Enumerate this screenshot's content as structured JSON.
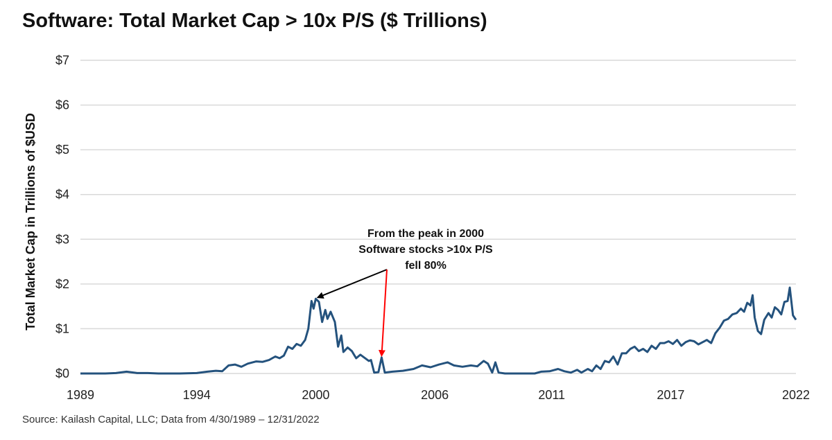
{
  "chart_data": {
    "type": "line",
    "title": "Software: Total Market Cap > 10x P/S ($ Trillions)",
    "xlabel": "",
    "ylabel": "Total Market Cap in Trillions of $USD",
    "source": "Source: Kailash Capital, LLC; Data from 4/30/1989 – 12/31/2022",
    "xlim": [
      1989.33,
      2022.99
    ],
    "ylim": [
      0,
      7
    ],
    "grid": true,
    "legend": "none",
    "x_ticks": [
      {
        "value": 1989.33,
        "label": "1989"
      },
      {
        "value": 1994.8,
        "label": "1994"
      },
      {
        "value": 2000.4,
        "label": "2000"
      },
      {
        "value": 2006.0,
        "label": "2006"
      },
      {
        "value": 2011.5,
        "label": "2011"
      },
      {
        "value": 2017.1,
        "label": "2017"
      },
      {
        "value": 2022.99,
        "label": "2022"
      }
    ],
    "y_ticks": [
      {
        "value": 0,
        "label": "$0"
      },
      {
        "value": 1,
        "label": "$1"
      },
      {
        "value": 2,
        "label": "$2"
      },
      {
        "value": 3,
        "label": "$3"
      },
      {
        "value": 4,
        "label": "$4"
      },
      {
        "value": 5,
        "label": "$5"
      },
      {
        "value": 6,
        "label": "$6"
      },
      {
        "value": 7,
        "label": "$7"
      }
    ],
    "series": [
      {
        "name": "Total Market Cap > 10x P/S",
        "color": "#24527d",
        "points": [
          [
            1989.33,
            0.0
          ],
          [
            1990.5,
            0.0
          ],
          [
            1991.0,
            0.01
          ],
          [
            1991.5,
            0.04
          ],
          [
            1992.0,
            0.01
          ],
          [
            1992.5,
            0.01
          ],
          [
            1993.0,
            0.0
          ],
          [
            1994.0,
            0.0
          ],
          [
            1994.8,
            0.01
          ],
          [
            1995.3,
            0.04
          ],
          [
            1995.7,
            0.06
          ],
          [
            1996.0,
            0.05
          ],
          [
            1996.3,
            0.18
          ],
          [
            1996.6,
            0.2
          ],
          [
            1996.9,
            0.15
          ],
          [
            1997.2,
            0.22
          ],
          [
            1997.6,
            0.27
          ],
          [
            1997.9,
            0.26
          ],
          [
            1998.2,
            0.3
          ],
          [
            1998.5,
            0.38
          ],
          [
            1998.7,
            0.34
          ],
          [
            1998.9,
            0.4
          ],
          [
            1999.1,
            0.6
          ],
          [
            1999.3,
            0.55
          ],
          [
            1999.5,
            0.66
          ],
          [
            1999.7,
            0.62
          ],
          [
            1999.9,
            0.75
          ],
          [
            2000.05,
            1.0
          ],
          [
            2000.2,
            1.62
          ],
          [
            2000.3,
            1.45
          ],
          [
            2000.4,
            1.67
          ],
          [
            2000.55,
            1.6
          ],
          [
            2000.7,
            1.15
          ],
          [
            2000.85,
            1.42
          ],
          [
            2000.95,
            1.22
          ],
          [
            2001.1,
            1.38
          ],
          [
            2001.3,
            1.15
          ],
          [
            2001.45,
            0.6
          ],
          [
            2001.6,
            0.85
          ],
          [
            2001.7,
            0.48
          ],
          [
            2001.9,
            0.58
          ],
          [
            2002.1,
            0.5
          ],
          [
            2002.3,
            0.34
          ],
          [
            2002.5,
            0.42
          ],
          [
            2002.7,
            0.35
          ],
          [
            2002.9,
            0.28
          ],
          [
            2003.0,
            0.3
          ],
          [
            2003.15,
            0.02
          ],
          [
            2003.35,
            0.03
          ],
          [
            2003.5,
            0.36
          ],
          [
            2003.65,
            0.02
          ],
          [
            2004.0,
            0.04
          ],
          [
            2004.5,
            0.06
          ],
          [
            2005.0,
            0.1
          ],
          [
            2005.4,
            0.18
          ],
          [
            2005.8,
            0.14
          ],
          [
            2006.2,
            0.2
          ],
          [
            2006.6,
            0.25
          ],
          [
            2006.9,
            0.18
          ],
          [
            2007.3,
            0.15
          ],
          [
            2007.7,
            0.18
          ],
          [
            2008.0,
            0.16
          ],
          [
            2008.3,
            0.28
          ],
          [
            2008.5,
            0.22
          ],
          [
            2008.7,
            0.02
          ],
          [
            2008.85,
            0.25
          ],
          [
            2009.0,
            0.02
          ],
          [
            2009.3,
            0.0
          ],
          [
            2010.0,
            0.0
          ],
          [
            2010.7,
            0.0
          ],
          [
            2011.0,
            0.04
          ],
          [
            2011.4,
            0.05
          ],
          [
            2011.8,
            0.1
          ],
          [
            2012.1,
            0.05
          ],
          [
            2012.4,
            0.02
          ],
          [
            2012.7,
            0.08
          ],
          [
            2012.9,
            0.02
          ],
          [
            2013.2,
            0.1
          ],
          [
            2013.4,
            0.05
          ],
          [
            2013.6,
            0.18
          ],
          [
            2013.8,
            0.1
          ],
          [
            2014.0,
            0.28
          ],
          [
            2014.2,
            0.25
          ],
          [
            2014.4,
            0.38
          ],
          [
            2014.6,
            0.2
          ],
          [
            2014.8,
            0.45
          ],
          [
            2015.0,
            0.45
          ],
          [
            2015.2,
            0.55
          ],
          [
            2015.4,
            0.6
          ],
          [
            2015.6,
            0.5
          ],
          [
            2015.8,
            0.55
          ],
          [
            2016.0,
            0.48
          ],
          [
            2016.2,
            0.62
          ],
          [
            2016.4,
            0.55
          ],
          [
            2016.6,
            0.68
          ],
          [
            2016.8,
            0.68
          ],
          [
            2017.0,
            0.72
          ],
          [
            2017.2,
            0.66
          ],
          [
            2017.4,
            0.75
          ],
          [
            2017.6,
            0.62
          ],
          [
            2017.8,
            0.7
          ],
          [
            2018.0,
            0.74
          ],
          [
            2018.2,
            0.72
          ],
          [
            2018.4,
            0.65
          ],
          [
            2018.6,
            0.7
          ],
          [
            2018.8,
            0.75
          ],
          [
            2019.0,
            0.68
          ],
          [
            2019.2,
            0.9
          ],
          [
            2019.4,
            1.02
          ],
          [
            2019.6,
            1.18
          ],
          [
            2019.8,
            1.22
          ],
          [
            2020.0,
            1.32
          ],
          [
            2020.2,
            1.35
          ],
          [
            2020.4,
            1.45
          ],
          [
            2020.55,
            1.38
          ],
          [
            2020.7,
            1.58
          ],
          [
            2020.85,
            1.52
          ],
          [
            2020.95,
            1.75
          ],
          [
            2021.05,
            1.25
          ],
          [
            2021.2,
            0.95
          ],
          [
            2021.35,
            0.88
          ],
          [
            2021.5,
            1.2
          ],
          [
            2021.7,
            1.35
          ],
          [
            2021.85,
            1.25
          ],
          [
            2022.0,
            1.48
          ],
          [
            2022.15,
            1.42
          ],
          [
            2022.3,
            1.32
          ],
          [
            2022.45,
            1.6
          ],
          [
            2022.6,
            1.62
          ],
          [
            2022.7,
            1.92
          ],
          [
            2022.85,
            1.3
          ],
          [
            2022.99,
            1.2
          ]
        ]
      }
    ],
    "annotations": [
      {
        "text": [
          "From the peak in 2000",
          "Software stocks >10x P/S",
          "fell 80%"
        ],
        "position": "center",
        "arrows": [
          {
            "from": "annotation",
            "to": [
              2000.5,
              1.7
            ],
            "color": "#000000"
          },
          {
            "from": "annotation",
            "to": [
              2003.5,
              0.4
            ],
            "color": "#ff0000"
          }
        ]
      }
    ]
  }
}
